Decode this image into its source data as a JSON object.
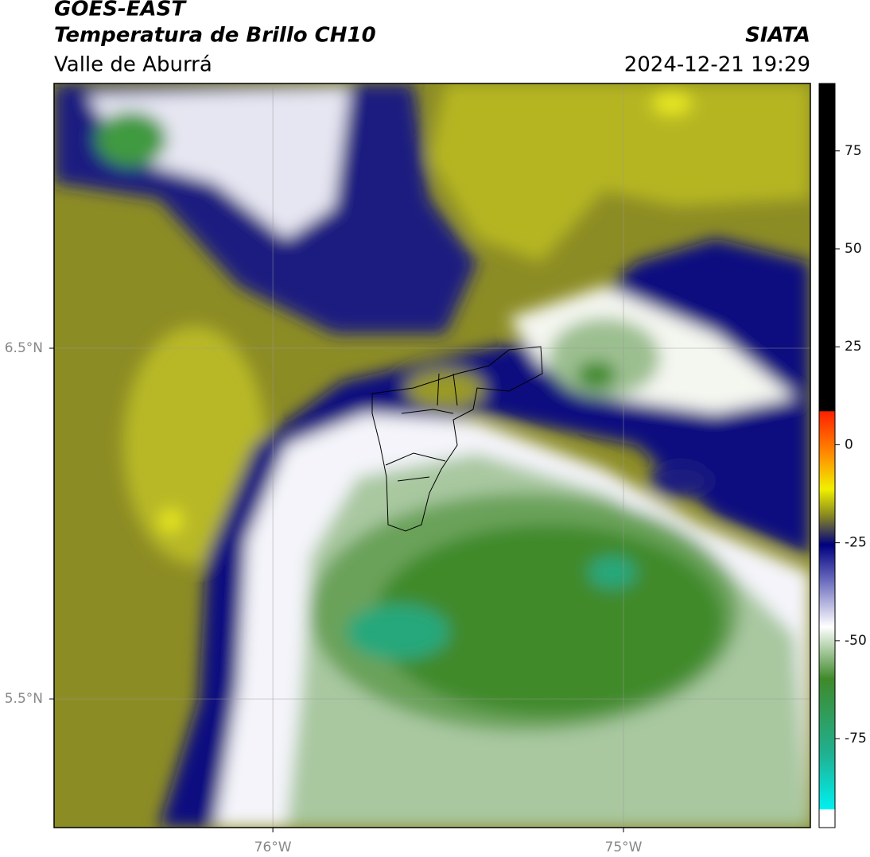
{
  "header": {
    "title": "GOES-EAST",
    "subtitle": "Temperatura de Brillo CH10",
    "region": "Valle de Aburrá",
    "source": "SIATA",
    "datetime": "2024-12-21 19:29"
  },
  "map": {
    "xlim": [
      -76.624,
      -74.467
    ],
    "ylim": [
      5.133,
      7.255
    ],
    "xticks": [
      {
        "value": -76,
        "label": "76°W"
      },
      {
        "value": -75,
        "label": "75°W"
      }
    ],
    "yticks": [
      {
        "value": 6.5,
        "label": "6.5°N"
      },
      {
        "value": 5.5,
        "label": "5.5°N"
      }
    ],
    "grid": true
  },
  "colorbar": {
    "lim": [
      -97.7,
      92.2
    ],
    "ticks": [
      75,
      50,
      25,
      0,
      -25,
      -50,
      -75
    ]
  }
}
